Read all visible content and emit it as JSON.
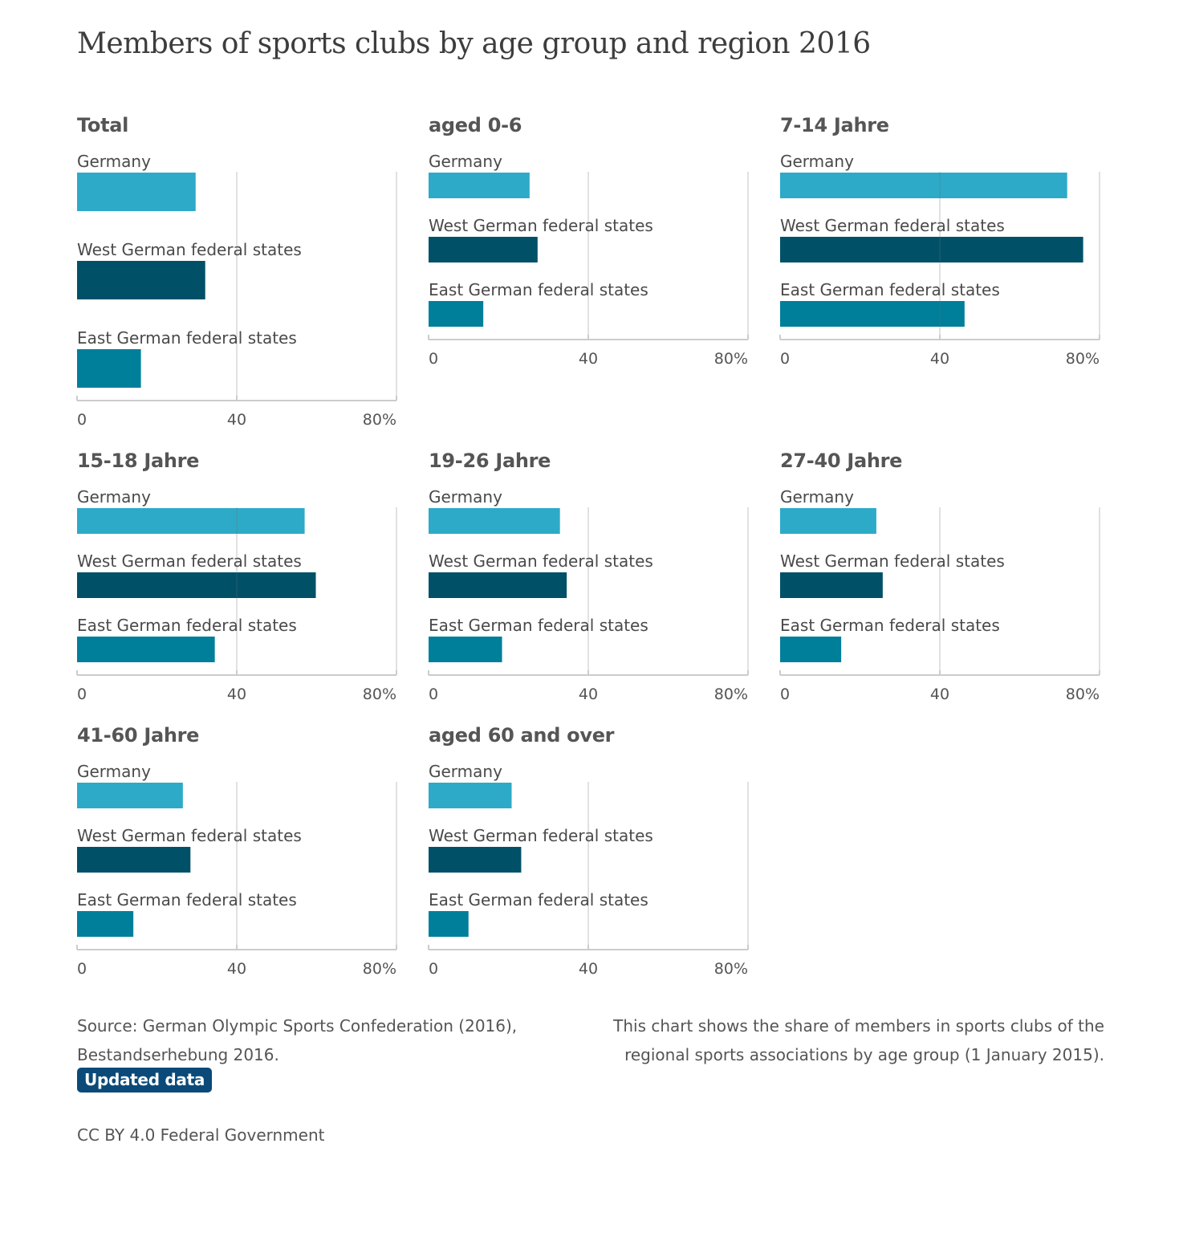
{
  "title": "Members of sports clubs by age group and region 2016",
  "chart_data": {
    "type": "bar",
    "orientation": "horizontal",
    "categories": [
      "Germany",
      "West German federal states",
      "East German federal states"
    ],
    "xlim": [
      0,
      80
    ],
    "ticks": [
      "0",
      "40",
      "80%"
    ],
    "grid": true,
    "colors": [
      "#2daac8",
      "#005068",
      "#007f9a"
    ],
    "panels": [
      {
        "title": "Total",
        "values": [
          29.7,
          32.1,
          16.0
        ]
      },
      {
        "title": "aged 0-6",
        "values": [
          25.3,
          27.3,
          13.7
        ]
      },
      {
        "title": "7-14 Jahre",
        "values": [
          71.9,
          75.9,
          46.2
        ]
      },
      {
        "title": "15-18 Jahre",
        "values": [
          57.0,
          59.8,
          34.5
        ]
      },
      {
        "title": "19-26 Jahre",
        "values": [
          32.9,
          34.6,
          18.4
        ]
      },
      {
        "title": "27-40 Jahre",
        "values": [
          24.1,
          25.7,
          15.3
        ]
      },
      {
        "title": "41-60 Jahre",
        "values": [
          26.5,
          28.4,
          14.1
        ]
      },
      {
        "title": "aged 60 and over",
        "values": [
          20.8,
          23.2,
          10.0
        ]
      }
    ]
  },
  "footer": {
    "source_line1": "Source: German Olympic Sports Confederation (2016),",
    "source_line2": "Bestandserhebung 2016.",
    "note_line1": "This chart shows the share of members in sports clubs of the",
    "note_line2": "regional sports associations by age group (1 January 2015).",
    "badge": "Updated data",
    "license": "CC BY 4.0 Federal Government"
  }
}
